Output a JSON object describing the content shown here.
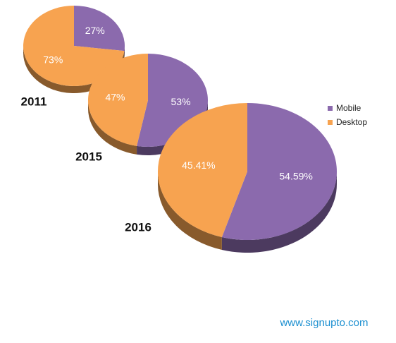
{
  "chart_data": [
    {
      "type": "pie",
      "title": "2011",
      "categories": [
        "Mobile",
        "Desktop"
      ],
      "values": [
        27,
        73
      ],
      "value_labels": [
        "27%",
        "73%"
      ],
      "colors": [
        "#8b6aad",
        "#f7a350"
      ]
    },
    {
      "type": "pie",
      "title": "2015",
      "categories": [
        "Mobile",
        "Desktop"
      ],
      "values": [
        53,
        47
      ],
      "value_labels": [
        "53%",
        "47%"
      ],
      "colors": [
        "#8b6aad",
        "#f7a350"
      ]
    },
    {
      "type": "pie",
      "title": "2016",
      "categories": [
        "Mobile",
        "Desktop"
      ],
      "values": [
        54.59,
        45.41
      ],
      "value_labels": [
        "54.59%",
        "45.41%"
      ],
      "colors": [
        "#8b6aad",
        "#f7a350"
      ]
    }
  ],
  "watermark": "www.signupto.com"
}
